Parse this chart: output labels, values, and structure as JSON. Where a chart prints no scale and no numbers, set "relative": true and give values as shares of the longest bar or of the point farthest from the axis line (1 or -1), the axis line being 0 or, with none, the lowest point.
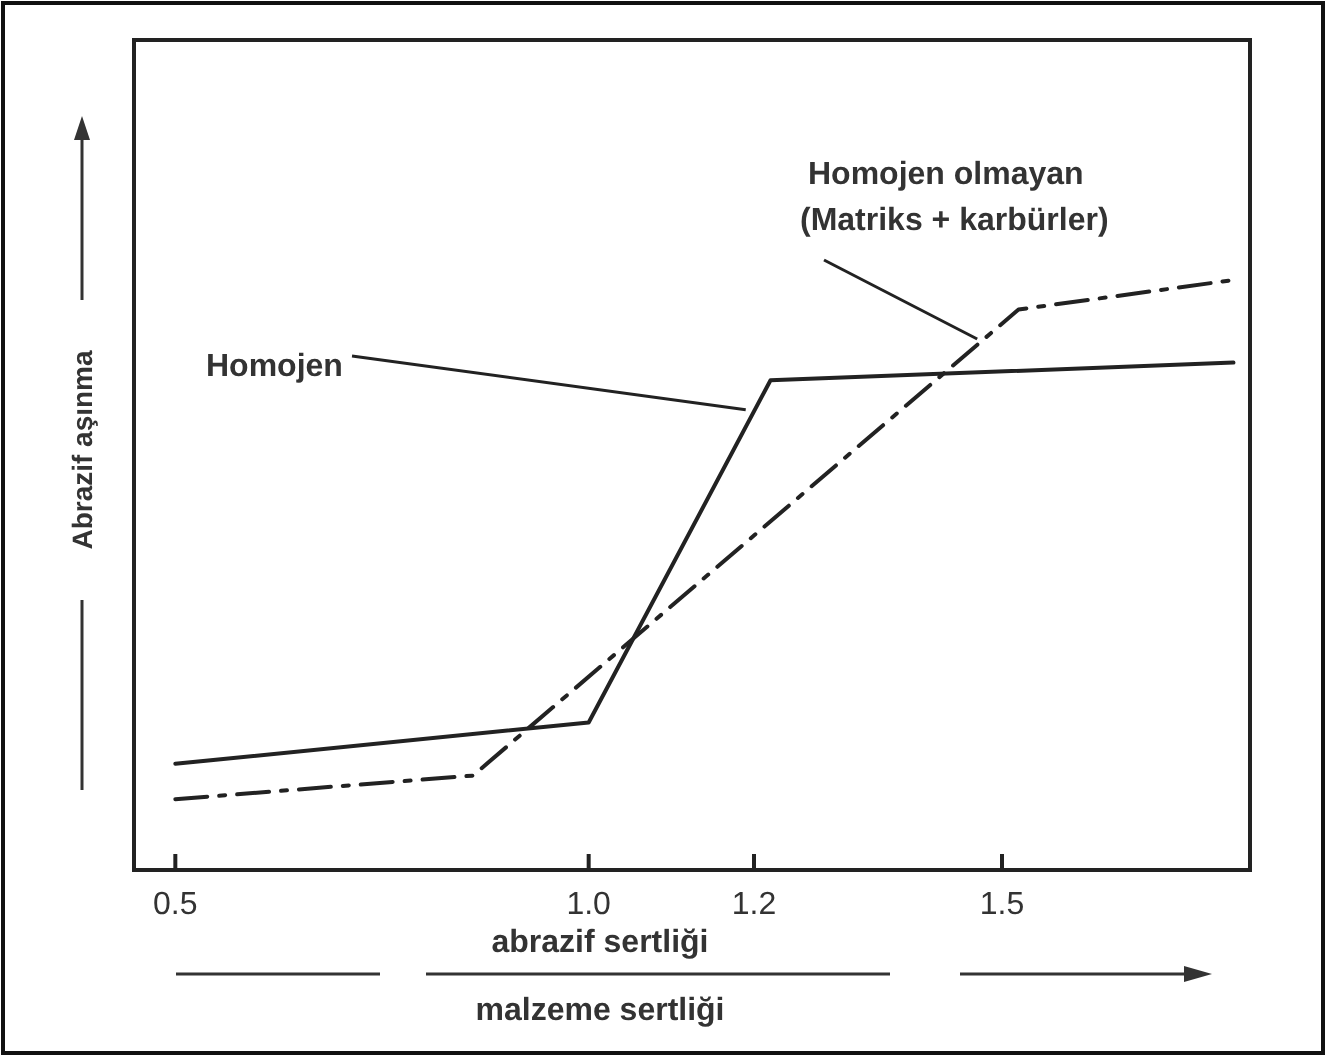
{
  "chart_data": {
    "type": "line",
    "relative": true,
    "xlabel": "abrazif sertliği\nmalzeme sertliği",
    "ylabel": "Abrazif aşınma",
    "xlim": [
      0.45,
      1.8
    ],
    "xticks": [
      {
        "value": 0.5,
        "label": "0.5"
      },
      {
        "value": 1.0,
        "label": "1.0"
      },
      {
        "value": 1.2,
        "label": "1.2"
      },
      {
        "value": 1.5,
        "label": "1.5"
      }
    ],
    "grid": false,
    "series": [
      {
        "color": "#222222",
        "line_style": "solid",
        "x": [
          0.5,
          1.0,
          1.22,
          1.78
        ],
        "values": [
          0.18,
          0.25,
          0.83,
          0.86
        ]
      },
      {
        "color": "#222222",
        "line_style": "dashed",
        "x": [
          0.5,
          0.86,
          1.52,
          1.78
        ],
        "values": [
          0.12,
          0.16,
          0.95,
          1
        ]
      }
    ],
    "annotations": [
      {
        "text": "Homojen",
        "x": 1.19,
        "y": 0.78
      },
      {
        "text": "Homojen olmayan\n(Matriks + karbürler)",
        "x": 1.47,
        "y": 0.9
      }
    ]
  }
}
